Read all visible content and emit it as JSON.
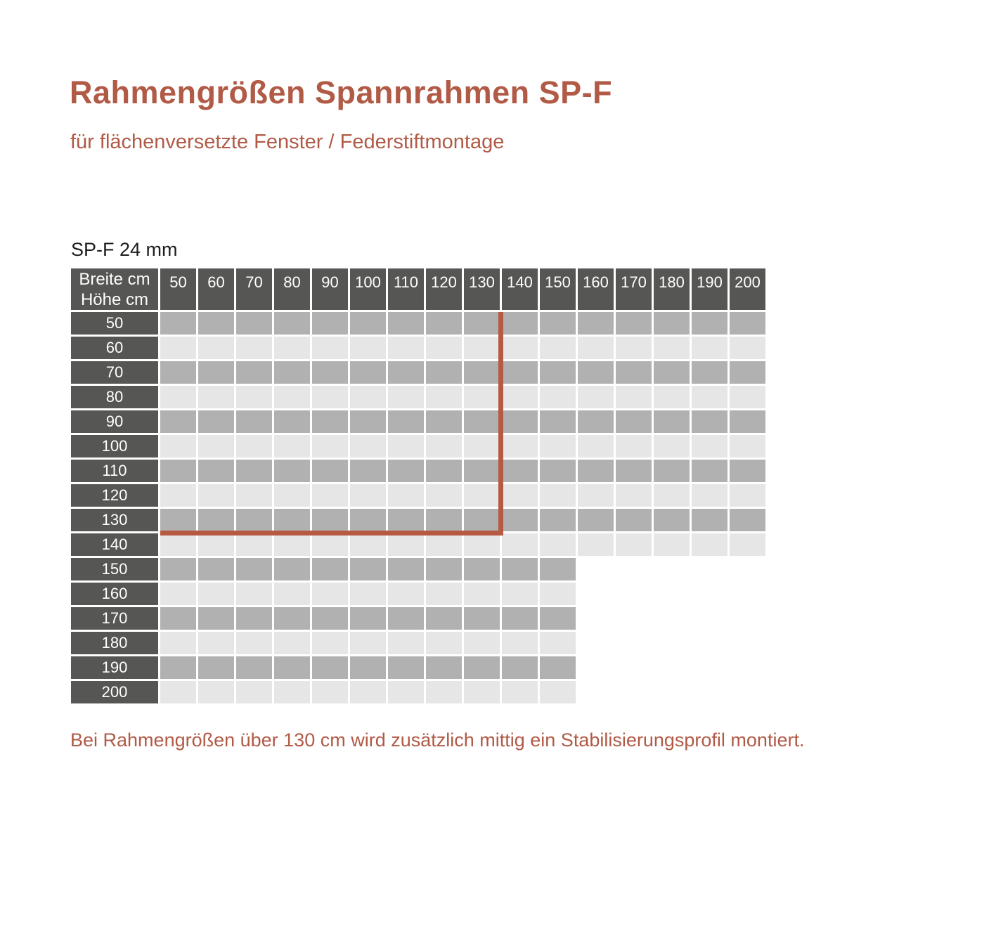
{
  "colors": {
    "accent_text": "#b15a46",
    "boundary_line": "#b65a42",
    "header_cell": "#565655",
    "header_text": "#ffffff",
    "cell_dark": "#b1b1b1",
    "cell_light": "#e6e6e6",
    "label_text": "#1d1d1b"
  },
  "header": {
    "title": "Rahmengrößen Spannrahmen SP-F",
    "subtitle": "für flächenversetzte Fenster / Federstiftmontage"
  },
  "table": {
    "label": "SP-F 24 mm",
    "corner": {
      "line1": "Breite cm",
      "line2": "Höhe cm"
    },
    "column_headers": [
      "50",
      "60",
      "70",
      "80",
      "90",
      "100",
      "110",
      "120",
      "130",
      "140",
      "150",
      "160",
      "170",
      "180",
      "190",
      "200"
    ],
    "rows": [
      {
        "label": "50",
        "cells": 16
      },
      {
        "label": "60",
        "cells": 16
      },
      {
        "label": "70",
        "cells": 16
      },
      {
        "label": "80",
        "cells": 16
      },
      {
        "label": "90",
        "cells": 16
      },
      {
        "label": "100",
        "cells": 16
      },
      {
        "label": "110",
        "cells": 16
      },
      {
        "label": "120",
        "cells": 16
      },
      {
        "label": "130",
        "cells": 16
      },
      {
        "label": "140",
        "cells": 16
      },
      {
        "label": "150",
        "cells": 11
      },
      {
        "label": "160",
        "cells": 11
      },
      {
        "label": "170",
        "cells": 11
      },
      {
        "label": "180",
        "cells": 11
      },
      {
        "label": "190",
        "cells": 11
      },
      {
        "label": "200",
        "cells": 11
      }
    ],
    "boundary": {
      "after_width": "130",
      "after_height": "130"
    }
  },
  "footnote": "Bei Rahmengrößen über 130 cm wird zusätzlich mittig ein Stabilisierungsprofil montiert.",
  "chart_data": {
    "type": "table",
    "title": "SP-F 24 mm",
    "column_axis_label": "Breite cm",
    "row_axis_label": "Höhe cm",
    "unit": "cm",
    "widths": [
      50,
      60,
      70,
      80,
      90,
      100,
      110,
      120,
      130,
      140,
      150,
      160,
      170,
      180,
      190,
      200
    ],
    "heights": [
      50,
      60,
      70,
      80,
      90,
      100,
      110,
      120,
      130,
      140,
      150,
      160,
      170,
      180,
      190,
      200
    ],
    "max_available_width_per_height": {
      "50": 200,
      "60": 200,
      "70": 200,
      "80": 200,
      "90": 200,
      "100": 200,
      "110": 200,
      "120": 200,
      "130": 200,
      "140": 200,
      "150": 150,
      "160": 150,
      "170": 150,
      "180": 150,
      "190": 150,
      "200": 150
    },
    "red_boundary": {
      "max_width_without_profile": 130,
      "max_height_without_profile": 130
    },
    "annotation": "Bei Rahmengrößen über 130 cm wird zusätzlich mittig ein Stabilisierungsprofil montiert."
  }
}
